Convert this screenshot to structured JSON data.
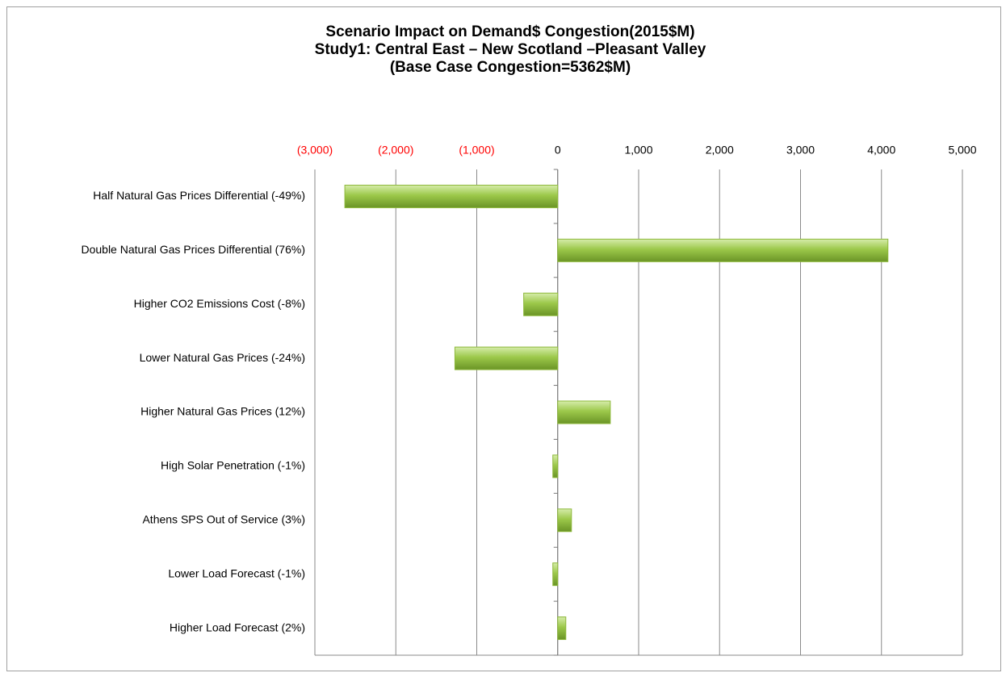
{
  "chart_data": {
    "type": "hbar",
    "title": [
      "Scenario Impact on Demand$ Congestion(2015$M)",
      "Study1: Central East – New Scotland –Pleasant Valley",
      "(Base Case Congestion=5362$M)"
    ],
    "categories": [
      "Half Natural Gas Prices Differential (-49%)",
      "Double Natural Gas Prices Differential (76%)",
      "Higher CO2 Emissions Cost (-8%)",
      "Lower Natural Gas Prices (-24%)",
      "Higher Natural Gas Prices (12%)",
      "High Solar Penetration (-1%)",
      "Athens SPS Out of Service (3%)",
      "Lower Load Forecast (-1%)",
      "Higher Load Forecast (2%)"
    ],
    "values": [
      -2630,
      4080,
      -420,
      -1270,
      650,
      -60,
      170,
      -60,
      100
    ],
    "color": "#8db83a",
    "xlim": [
      -3000,
      5000
    ],
    "xticks": [
      {
        "value": -3000,
        "label": "(3,000)"
      },
      {
        "value": -2000,
        "label": "(2,000)"
      },
      {
        "value": -1000,
        "label": "(1,000)"
      },
      0,
      {
        "value": 1000,
        "label": "1,000"
      },
      {
        "value": 2000,
        "label": "2,000"
      },
      {
        "value": 3000,
        "label": "3,000"
      },
      {
        "value": 4000,
        "label": "4,000"
      },
      {
        "value": 5000,
        "label": "5,000"
      }
    ],
    "negative_tick_color": "#ff0000",
    "grid": true
  }
}
